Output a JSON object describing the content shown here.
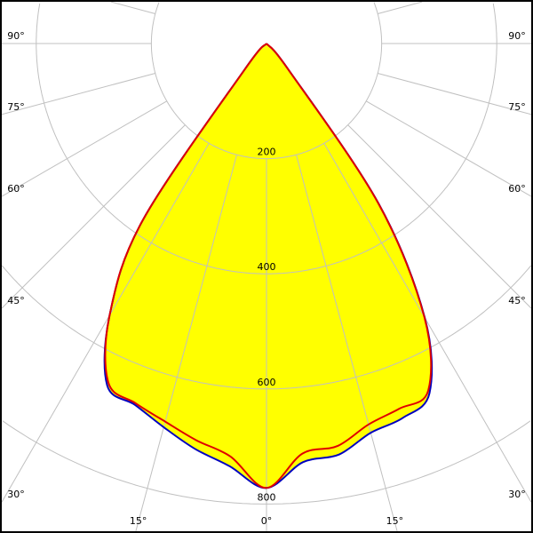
{
  "chart_data": {
    "type": "polar",
    "title": "",
    "radial_ticks": [
      200,
      400,
      600,
      800
    ],
    "radial_tick_labels": [
      "200",
      "400",
      "600",
      "800"
    ],
    "angle_ticks": [
      0,
      15,
      30,
      45,
      60,
      75,
      90
    ],
    "angle_tick_labels": [
      "0°",
      "15°",
      "30°",
      "45°",
      "60°",
      "75°",
      "90°"
    ],
    "grid": true,
    "angles_deg": [
      0,
      5,
      10,
      15,
      20,
      25,
      30,
      35,
      40,
      45
    ],
    "series": [
      {
        "color": "#0000c0",
        "left": [
          772,
          737,
          715,
          690,
          668,
          655,
          545,
          375,
          60,
          0
        ],
        "right": [
          772,
          730,
          725,
          700,
          692,
          670,
          550,
          340,
          60,
          0
        ]
      },
      {
        "color": "#e00000",
        "left": [
          772,
          720,
          700,
          680,
          665,
          650,
          545,
          375,
          58,
          0
        ],
        "right": [
          772,
          715,
          710,
          685,
          675,
          665,
          548,
          338,
          58,
          0
        ]
      }
    ],
    "fill_color": "#ffff00",
    "grid_color": "#c0c0c0"
  }
}
